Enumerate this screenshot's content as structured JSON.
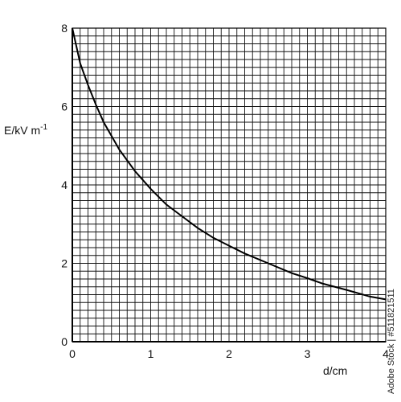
{
  "chart_data": {
    "type": "line",
    "title": "",
    "xlabel": "d/cm",
    "ylabel_main": "E/kV m",
    "ylabel_sup": "-1",
    "xlim": [
      0,
      4
    ],
    "ylim": [
      0,
      8
    ],
    "x_ticks": [
      0,
      1,
      2,
      3,
      4
    ],
    "y_ticks": [
      0,
      2,
      4,
      6,
      8
    ],
    "x_tick_labels": [
      "0",
      "1",
      "2",
      "3",
      "4"
    ],
    "y_tick_labels": [
      "0",
      "2",
      "4",
      "6",
      "8"
    ],
    "grid": true,
    "grid_minor_step_x": 0.1,
    "grid_minor_step_y": 0.2,
    "series": [
      {
        "x": [
          0,
          0.1,
          0.2,
          0.3,
          0.4,
          0.5,
          0.6,
          0.8,
          1.0,
          1.2,
          1.4,
          1.6,
          1.8,
          2.0,
          2.2,
          2.5,
          2.8,
          3.0,
          3.2,
          3.5,
          3.8,
          4.0
        ],
        "values": [
          8.0,
          7.1,
          6.55,
          6.05,
          5.6,
          5.25,
          4.9,
          4.35,
          3.9,
          3.5,
          3.2,
          2.9,
          2.65,
          2.45,
          2.25,
          2.0,
          1.75,
          1.62,
          1.48,
          1.32,
          1.15,
          1.08
        ]
      }
    ],
    "colors": {
      "grid": "#111111",
      "line": "#000000",
      "text": "#111111"
    }
  },
  "watermark": "Adobe Stock | #511821511"
}
